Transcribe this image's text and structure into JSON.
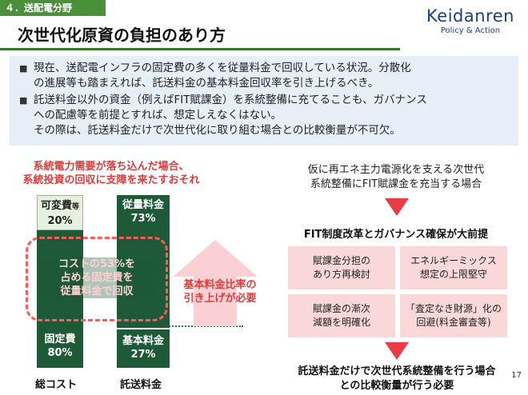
{
  "header": {
    "section": "４．送配電分野",
    "title": "次世代化原資の負担のあり方"
  },
  "logo": {
    "name": "Keidanren",
    "tagline": "Policy & Action"
  },
  "summary": {
    "bullets": [
      {
        "lines": [
          "現在、送配電インフラの固定費の多くを従量料金で回収している状況。分散化",
          "の進展等も踏まえれば、託送料金の基本料金回収率を引き上げるべき。"
        ]
      },
      {
        "lines": [
          "託送料金以外の資金（例えばFIT賦課金）を系統整備に充てることも、ガバナンス",
          "への配慮等を前提とすれば、想定しえなくはない。",
          "その際は、託送料金だけで次世代化に取り組む場合との比較衡量が不可欠。"
        ]
      }
    ]
  },
  "left": {
    "risk_lines": [
      "系統電力需要が落ち込んだ場合、",
      "系統投資の回収に支障を来たすおそれ"
    ],
    "total_cost": {
      "label": "総コスト",
      "variable_label": "可変費",
      "variable_suffix": "等",
      "variable_pct": "20%",
      "fixed_label": "固定費",
      "fixed_pct": "80%"
    },
    "wheeling": {
      "label": "託送料金",
      "usage_label": "従量料金",
      "usage_pct": "73%",
      "base_label": "基本料金",
      "base_pct": "27%"
    },
    "callout_lines": [
      "コストの53%を",
      "占める固定費を",
      "従量料金で回収"
    ],
    "raise_lines": [
      "基本料金比率の",
      "引き上げが必要"
    ]
  },
  "right": {
    "question_lines": [
      "仮に再エネ主力電源化を支える次世代",
      "系統整備にFIT賦課金を充当する場合"
    ],
    "premise": "FIT制度改革とガバナンス確保が大前提",
    "measures": [
      [
        "賦課金分担の",
        "あり方再検討"
      ],
      [
        "エネルギーミックス",
        "想定の上限堅守"
      ],
      [
        "賦課金の漸次",
        "減額を明確化"
      ],
      [
        "「査定なき財源」化の",
        "回避(料金審査等)"
      ]
    ],
    "conclusion_lines": [
      "託送料金だけで次世代系統整備を行う場合",
      "との比較衡量が行う必要"
    ]
  },
  "page_number": "17",
  "colors": {
    "green": "#1e5a37",
    "red": "#e03a3a",
    "pink": "#fbd8d8",
    "blue_bg": "#e6eef8"
  }
}
